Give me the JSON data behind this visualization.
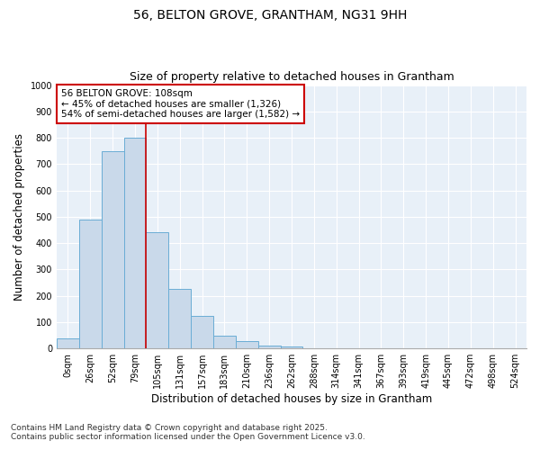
{
  "title1": "56, BELTON GROVE, GRANTHAM, NG31 9HH",
  "title2": "Size of property relative to detached houses in Grantham",
  "xlabel": "Distribution of detached houses by size in Grantham",
  "ylabel": "Number of detached properties",
  "categories": [
    "0sqm",
    "26sqm",
    "52sqm",
    "79sqm",
    "105sqm",
    "131sqm",
    "157sqm",
    "183sqm",
    "210sqm",
    "236sqm",
    "262sqm",
    "288sqm",
    "314sqm",
    "341sqm",
    "367sqm",
    "393sqm",
    "419sqm",
    "445sqm",
    "472sqm",
    "498sqm",
    "524sqm"
  ],
  "bar_heights": [
    40,
    490,
    750,
    800,
    440,
    225,
    125,
    50,
    28,
    12,
    8,
    0,
    0,
    0,
    0,
    0,
    0,
    0,
    0,
    0,
    0
  ],
  "bar_color": "#c9d9ea",
  "bar_edge_color": "#6aadd5",
  "red_line_index": 4,
  "annotation_text_line1": "56 BELTON GROVE: 108sqm",
  "annotation_text_line2": "← 45% of detached houses are smaller (1,326)",
  "annotation_text_line3": "54% of semi-detached houses are larger (1,582) →",
  "annotation_box_color": "#ffffff",
  "annotation_box_edge_color": "#cc0000",
  "ylim": [
    0,
    1000
  ],
  "yticks": [
    0,
    100,
    200,
    300,
    400,
    500,
    600,
    700,
    800,
    900,
    1000
  ],
  "footnote1": "Contains HM Land Registry data © Crown copyright and database right 2025.",
  "footnote2": "Contains public sector information licensed under the Open Government Licence v3.0.",
  "plot_bg_color": "#e8f0f8",
  "fig_bg_color": "#ffffff",
  "grid_color": "#ffffff",
  "title1_fontsize": 10,
  "title2_fontsize": 9,
  "axis_label_fontsize": 8.5,
  "tick_fontsize": 7,
  "annotation_fontsize": 7.5,
  "footnote_fontsize": 6.5
}
